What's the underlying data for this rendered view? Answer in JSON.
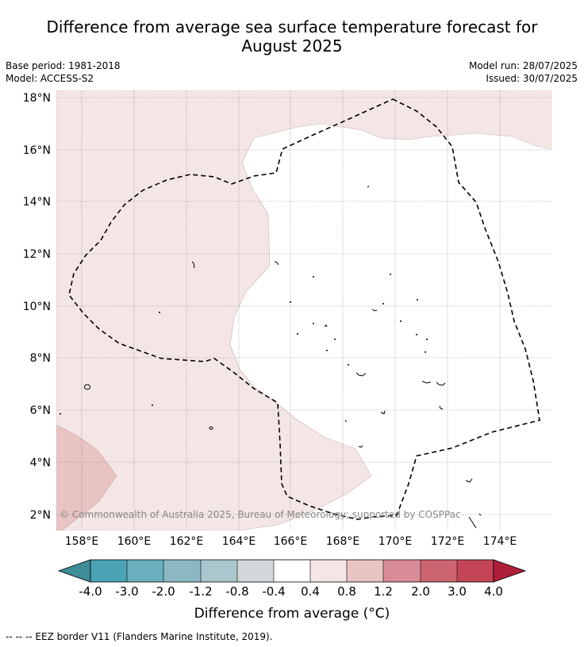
{
  "header": {
    "title_line1": "Difference from average sea surface temperature forecast for",
    "title_line2": "August 2025",
    "base_period": "Base period: 1981-2018",
    "model": "Model: ACCESS-S2",
    "model_run": "Model run: 28/07/2025",
    "issued": "Issued: 30/07/2025"
  },
  "map": {
    "lat_labels": [
      "18°N",
      "16°N",
      "14°N",
      "12°N",
      "10°N",
      "8°N",
      "6°N",
      "4°N",
      "2°N"
    ],
    "lon_labels": [
      "158°E",
      "160°E",
      "162°E",
      "164°E",
      "166°E",
      "168°E",
      "170°E",
      "172°E",
      "174°E"
    ],
    "copyright": "© Commonwealth of Australia 2025, Bureau of Meteorology; supported by COSPPac",
    "colors": {
      "light_warm": "#f5e6e6",
      "medium_warm": "#e8c4c2",
      "border": "#000000"
    }
  },
  "colorbar": {
    "ticks": [
      "-4.0",
      "-3.0",
      "-2.0",
      "-1.2",
      "-0.8",
      "-0.4",
      "0.4",
      "0.8",
      "1.2",
      "2.0",
      "3.0",
      "4.0"
    ],
    "colors": [
      "#3e8d99",
      "#4aa3b4",
      "#6aafbe",
      "#8bb8c3",
      "#a9c7cc",
      "#d3d7d9",
      "#ffffff",
      "#f5e6e6",
      "#e8c4c2",
      "#d98c95",
      "#cd6570",
      "#c24455",
      "#b01f3a"
    ],
    "label": "Difference from average (°C)"
  },
  "legend": {
    "eez_text": "--  --  -- EEZ border V11 (Flanders Marine Institute, 2019)."
  }
}
